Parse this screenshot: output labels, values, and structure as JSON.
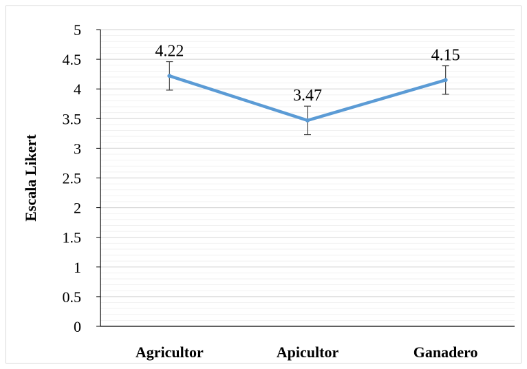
{
  "chart_data": {
    "type": "line",
    "title": "",
    "xlabel": "",
    "ylabel": "Escala Likert",
    "categories": [
      "Agricultor",
      "Apicultor",
      "Ganadero"
    ],
    "series": [
      {
        "values": [
          4.22,
          3.47,
          4.15
        ],
        "error": [
          0.24,
          0.24,
          0.24
        ],
        "color": "#5b9bd5"
      }
    ],
    "data_labels": [
      "4.22",
      "3.47",
      "4.15"
    ],
    "ylim": [
      0,
      5
    ],
    "yticks": [
      "0",
      "0.5",
      "1",
      "1.5",
      "2",
      "2.5",
      "3",
      "3.5",
      "4",
      "4.5",
      "5"
    ],
    "grid": true,
    "grid_color": "#d9d9d9",
    "legend": "none"
  }
}
